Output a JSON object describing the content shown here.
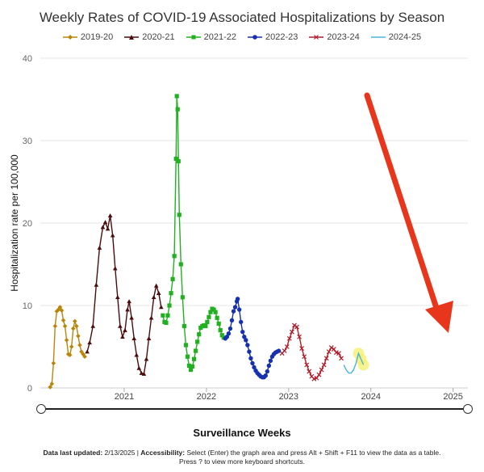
{
  "chart_data": {
    "type": "line",
    "title": "Weekly Rates of COVID-19 Associated Hospitalizations by Season",
    "ylabel": "Hospitalization rate per 100,000",
    "xlabel": "Surveillance Weeks",
    "ylim": [
      0,
      40
    ],
    "yticks": [
      "0",
      "10",
      "20",
      "30",
      "40"
    ],
    "xticks": [
      {
        "label": "2021",
        "x": 2021.0
      },
      {
        "label": "2022",
        "x": 2022.0
      },
      {
        "label": "2023",
        "x": 2023.0
      },
      {
        "label": "2024",
        "x": 2024.0
      },
      {
        "label": "2025",
        "x": 2025.0
      }
    ],
    "xlim": [
      2019.98,
      2025.18
    ],
    "legend_position": "top",
    "grid": "horizontal",
    "series": [
      {
        "name": "2019-20",
        "color": "#b8860b",
        "marker": "diamond",
        "points": [
          [
            2020.1,
            0.1
          ],
          [
            2020.12,
            0.5
          ],
          [
            2020.14,
            3.0
          ],
          [
            2020.16,
            7.5
          ],
          [
            2020.18,
            9.3
          ],
          [
            2020.2,
            9.5
          ],
          [
            2020.22,
            9.8
          ],
          [
            2020.24,
            9.4
          ],
          [
            2020.26,
            8.2
          ],
          [
            2020.28,
            7.5
          ],
          [
            2020.3,
            5.8
          ],
          [
            2020.32,
            4.1
          ],
          [
            2020.34,
            4.0
          ],
          [
            2020.36,
            5.0
          ],
          [
            2020.38,
            7.2
          ],
          [
            2020.4,
            8.1
          ],
          [
            2020.42,
            7.5
          ],
          [
            2020.44,
            6.3
          ],
          [
            2020.46,
            5.2
          ],
          [
            2020.48,
            4.4
          ],
          [
            2020.5,
            4.1
          ],
          [
            2020.52,
            3.8
          ]
        ]
      },
      {
        "name": "2020-21",
        "color": "#4a0c0c",
        "marker": "triangle",
        "points": [
          [
            2020.55,
            4.4
          ],
          [
            2020.58,
            5.5
          ],
          [
            2020.62,
            7.5
          ],
          [
            2020.66,
            12.5
          ],
          [
            2020.7,
            17.0
          ],
          [
            2020.74,
            19.5
          ],
          [
            2020.77,
            20.1
          ],
          [
            2020.8,
            19.3
          ],
          [
            2020.83,
            20.9
          ],
          [
            2020.86,
            18.5
          ],
          [
            2020.89,
            14.5
          ],
          [
            2020.92,
            11.0
          ],
          [
            2020.95,
            7.5
          ],
          [
            2020.98,
            6.2
          ],
          [
            2021.01,
            7.0
          ],
          [
            2021.04,
            9.5
          ],
          [
            2021.06,
            10.5
          ],
          [
            2021.09,
            8.5
          ],
          [
            2021.12,
            6.0
          ],
          [
            2021.15,
            4.0
          ],
          [
            2021.18,
            2.4
          ],
          [
            2021.21,
            1.8
          ],
          [
            2021.24,
            1.7
          ],
          [
            2021.27,
            3.5
          ],
          [
            2021.3,
            6.0
          ],
          [
            2021.33,
            8.5
          ],
          [
            2021.36,
            11.0
          ],
          [
            2021.39,
            12.4
          ],
          [
            2021.42,
            11.5
          ],
          [
            2021.45,
            9.8
          ]
        ]
      },
      {
        "name": "2021-22",
        "color": "#22b022",
        "marker": "square",
        "points": [
          [
            2021.47,
            8.8
          ],
          [
            2021.49,
            8.0
          ],
          [
            2021.51,
            7.9
          ],
          [
            2021.53,
            8.8
          ],
          [
            2021.55,
            10.0
          ],
          [
            2021.57,
            11.5
          ],
          [
            2021.59,
            13.2
          ],
          [
            2021.61,
            16.0
          ],
          [
            2021.63,
            27.8
          ],
          [
            2021.64,
            35.4
          ],
          [
            2021.65,
            33.8
          ],
          [
            2021.66,
            27.5
          ],
          [
            2021.67,
            21.0
          ],
          [
            2021.69,
            15.0
          ],
          [
            2021.71,
            11.0
          ],
          [
            2021.73,
            7.5
          ],
          [
            2021.75,
            5.2
          ],
          [
            2021.77,
            3.8
          ],
          [
            2021.79,
            2.7
          ],
          [
            2021.81,
            2.2
          ],
          [
            2021.83,
            2.6
          ],
          [
            2021.85,
            3.5
          ],
          [
            2021.87,
            4.5
          ],
          [
            2021.89,
            5.6
          ],
          [
            2021.91,
            6.5
          ],
          [
            2021.93,
            7.3
          ],
          [
            2021.95,
            7.5
          ],
          [
            2021.97,
            7.6
          ],
          [
            2021.99,
            7.5
          ],
          [
            2022.01,
            8.0
          ],
          [
            2022.03,
            8.6
          ],
          [
            2022.05,
            9.2
          ],
          [
            2022.07,
            9.6
          ],
          [
            2022.09,
            9.5
          ],
          [
            2022.11,
            9.2
          ],
          [
            2022.13,
            8.5
          ],
          [
            2022.15,
            7.8
          ],
          [
            2022.17,
            7.0
          ],
          [
            2022.19,
            6.4
          ],
          [
            2022.21,
            6.1
          ]
        ]
      },
      {
        "name": "2022-23",
        "color": "#1631b0",
        "marker": "circle",
        "points": [
          [
            2022.23,
            6.0
          ],
          [
            2022.25,
            6.2
          ],
          [
            2022.27,
            6.6
          ],
          [
            2022.29,
            7.2
          ],
          [
            2022.31,
            8.2
          ],
          [
            2022.33,
            9.3
          ],
          [
            2022.35,
            9.8
          ],
          [
            2022.37,
            10.5
          ],
          [
            2022.38,
            10.8
          ],
          [
            2022.4,
            9.5
          ],
          [
            2022.42,
            8.0
          ],
          [
            2022.44,
            6.8
          ],
          [
            2022.46,
            6.2
          ],
          [
            2022.48,
            5.8
          ],
          [
            2022.5,
            5.2
          ],
          [
            2022.52,
            4.4
          ],
          [
            2022.54,
            3.6
          ],
          [
            2022.56,
            3.0
          ],
          [
            2022.58,
            2.5
          ],
          [
            2022.6,
            2.1
          ],
          [
            2022.62,
            1.8
          ],
          [
            2022.64,
            1.6
          ],
          [
            2022.66,
            1.4
          ],
          [
            2022.68,
            1.3
          ],
          [
            2022.7,
            1.3
          ],
          [
            2022.72,
            1.5
          ],
          [
            2022.74,
            2.0
          ],
          [
            2022.76,
            2.7
          ],
          [
            2022.78,
            3.3
          ],
          [
            2022.8,
            3.8
          ],
          [
            2022.82,
            4.1
          ],
          [
            2022.84,
            4.3
          ],
          [
            2022.86,
            4.4
          ],
          [
            2022.88,
            4.5
          ]
        ]
      },
      {
        "name": "2023-24",
        "color": "#b01c2a",
        "marker": "x",
        "points": [
          [
            2022.92,
            4.2
          ],
          [
            2022.95,
            4.5
          ],
          [
            2022.98,
            5.0
          ],
          [
            2023.01,
            6.0
          ],
          [
            2023.04,
            6.8
          ],
          [
            2023.07,
            7.6
          ],
          [
            2023.1,
            7.4
          ],
          [
            2023.13,
            6.2
          ],
          [
            2023.16,
            4.8
          ],
          [
            2023.19,
            3.8
          ],
          [
            2023.22,
            2.8
          ],
          [
            2023.25,
            2.0
          ],
          [
            2023.28,
            1.4
          ],
          [
            2023.31,
            1.1
          ],
          [
            2023.34,
            1.2
          ],
          [
            2023.37,
            1.6
          ],
          [
            2023.4,
            2.2
          ],
          [
            2023.43,
            2.8
          ],
          [
            2023.46,
            3.6
          ],
          [
            2023.49,
            4.4
          ],
          [
            2023.52,
            4.9
          ],
          [
            2023.55,
            4.7
          ],
          [
            2023.58,
            4.3
          ],
          [
            2023.61,
            4.2
          ],
          [
            2023.64,
            3.6
          ]
        ]
      },
      {
        "name": "2024-25",
        "color": "#4ab3e6",
        "marker": "none",
        "points": [
          [
            2023.67,
            2.8
          ],
          [
            2023.7,
            2.2
          ],
          [
            2023.73,
            1.8
          ],
          [
            2023.76,
            1.8
          ],
          [
            2023.79,
            2.2
          ],
          [
            2023.82,
            3.0
          ],
          [
            2023.85,
            4.2
          ],
          [
            2023.88,
            3.5
          ],
          [
            2023.91,
            2.8
          ]
        ]
      }
    ]
  }
}
